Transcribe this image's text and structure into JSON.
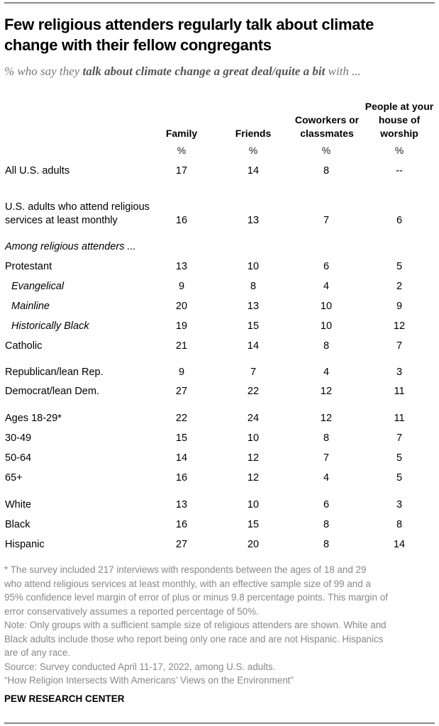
{
  "title": "Few religious attenders regularly talk about climate change with their fellow congregants",
  "subtitle": {
    "prefix": "% who say they ",
    "bold": "talk about climate change a great deal/quite a bit",
    "suffix": " with ..."
  },
  "columns": [
    {
      "label": "Family",
      "unit": "%"
    },
    {
      "label": "Friends",
      "unit": "%"
    },
    {
      "label": "Coworkers or classmates",
      "unit": "%"
    },
    {
      "label": "People at your house of worship",
      "unit": "%"
    }
  ],
  "rows": [
    {
      "label": "All U.S. adults",
      "style": "normal",
      "values": [
        "17",
        "14",
        "8",
        "--"
      ]
    },
    {
      "label": "U.S. adults who attend religious services at least monthly",
      "style": "normal",
      "values": [
        "16",
        "13",
        "7",
        "6"
      ]
    },
    {
      "label": "Among religious attenders ...",
      "style": "heading",
      "values": []
    },
    {
      "label": "Protestant",
      "style": "normal",
      "values": [
        "13",
        "10",
        "6",
        "5"
      ]
    },
    {
      "label": "Evangelical",
      "style": "indent",
      "values": [
        "9",
        "8",
        "4",
        "2"
      ]
    },
    {
      "label": "Mainline",
      "style": "indent",
      "values": [
        "20",
        "13",
        "10",
        "9"
      ]
    },
    {
      "label": "Historically Black",
      "style": "indent",
      "values": [
        "19",
        "15",
        "10",
        "12"
      ]
    },
    {
      "label": "Catholic",
      "style": "normal",
      "values": [
        "21",
        "14",
        "8",
        "7"
      ]
    },
    {
      "label": "Republican/lean Rep.",
      "style": "normal",
      "values": [
        "9",
        "7",
        "4",
        "3"
      ]
    },
    {
      "label": "Democrat/lean Dem.",
      "style": "normal",
      "values": [
        "27",
        "22",
        "12",
        "11"
      ]
    },
    {
      "label": "Ages 18-29*",
      "style": "normal",
      "values": [
        "22",
        "24",
        "12",
        "11"
      ]
    },
    {
      "label": "30-49",
      "style": "normal",
      "values": [
        "15",
        "10",
        "8",
        "7"
      ]
    },
    {
      "label": "50-64",
      "style": "normal",
      "values": [
        "14",
        "12",
        "7",
        "5"
      ]
    },
    {
      "label": "65+",
      "style": "normal",
      "values": [
        "16",
        "12",
        "4",
        "5"
      ]
    },
    {
      "label": "White",
      "style": "normal",
      "values": [
        "13",
        "10",
        "6",
        "3"
      ]
    },
    {
      "label": "Black",
      "style": "normal",
      "values": [
        "16",
        "15",
        "8",
        "8"
      ]
    },
    {
      "label": "Hispanic",
      "style": "normal",
      "values": [
        "27",
        "20",
        "8",
        "14"
      ]
    }
  ],
  "footnotes": [
    "* The survey included 217 interviews with respondents between the ages of 18 and 29",
    "who attend religious services at least monthly, with an effective sample size of 99 and a",
    "95% confidence level margin of error of plus or minus 9.8 percentage points. This margin of",
    "error conservatively assumes a reported percentage of 50%.",
    "Note: Only groups with a sufficient sample size of religious attenders are shown. White and",
    "Black adults include those who report being only one race and are not Hispanic. Hispanics",
    "are of any race.",
    "Source: Survey conducted April 11-17, 2022, among U.S. adults.",
    "“How Religion Intersects With Americans’ Views on the Environment”"
  ],
  "brand": "PEW RESEARCH CENTER"
}
